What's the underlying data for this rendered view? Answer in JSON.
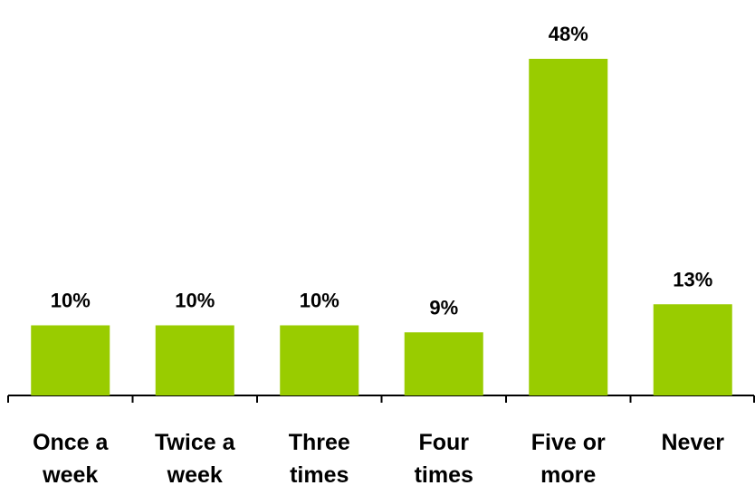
{
  "chart_data": {
    "type": "bar",
    "categories": [
      [
        "Once a",
        "week"
      ],
      [
        "Twice a",
        "week"
      ],
      [
        "Three",
        "times"
      ],
      [
        "Four",
        "times"
      ],
      [
        "Five or",
        "more"
      ],
      [
        "Never"
      ]
    ],
    "values": [
      10,
      10,
      10,
      9,
      48,
      13
    ],
    "data_labels": [
      "10%",
      "10%",
      "10%",
      "9%",
      "48%",
      "13%"
    ],
    "title": "",
    "xlabel": "",
    "ylabel": "",
    "ylim": [
      0,
      48
    ],
    "grid": false,
    "legend": "none",
    "bar_color": "#99cc00",
    "axis_color": "#000000"
  }
}
